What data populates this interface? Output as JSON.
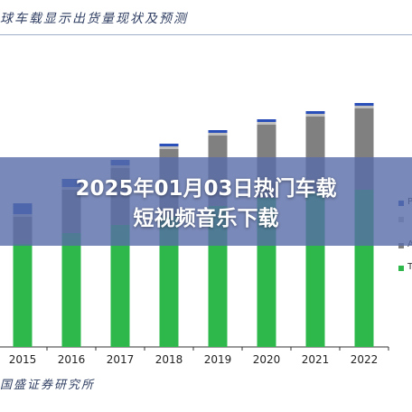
{
  "header": {
    "title_fragment": "球车载显示出货量现状及预测"
  },
  "footer": {
    "source_fragment": "国盛证券研究所"
  },
  "banner": {
    "line1": "2025年01月03日热门车载",
    "line2": "短视频音乐下载"
  },
  "chart_data": {
    "type": "bar",
    "stacked": true,
    "categories": [
      "2015",
      "2016",
      "2017",
      "2018",
      "2019",
      "2020",
      "2021",
      "2022"
    ],
    "ylim": [
      0,
      100
    ],
    "grid": false,
    "legend_position": "right",
    "series": [
      {
        "name": "T",
        "color": "#2eb84b",
        "values": [
          38,
          42,
          45,
          48,
          52,
          55,
          57,
          58
        ]
      },
      {
        "name": "A",
        "color": "#808080",
        "values": [
          10,
          16,
          21,
          25,
          26,
          27,
          28,
          30
        ]
      },
      {
        "name": "",
        "color": "#bfbfbf",
        "values": [
          1,
          1,
          1,
          1,
          1,
          1,
          1,
          1
        ]
      },
      {
        "name": "P",
        "color": "#2b4fb8",
        "values": [
          4,
          3,
          2,
          1,
          1,
          1,
          1,
          1
        ]
      }
    ]
  },
  "colors": {
    "overlay": "#586ca8",
    "axis": "#333333",
    "title": "#2f3e62"
  }
}
